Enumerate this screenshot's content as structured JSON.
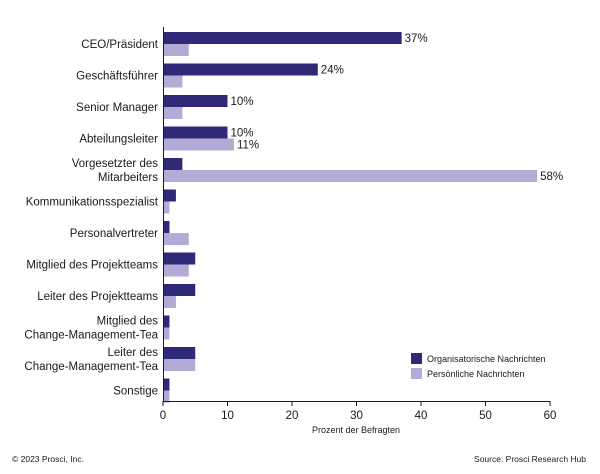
{
  "chart_data": {
    "type": "bar",
    "orientation": "horizontal",
    "categories": [
      [
        "CEO/Präsident"
      ],
      [
        "Geschäftsführer"
      ],
      [
        "Senior Manager"
      ],
      [
        "Abteilungsleiter"
      ],
      [
        "Vorgesetzter des",
        "Mitarbeiters"
      ],
      [
        "Kommunikationsspezialist"
      ],
      [
        "Personalvertreter"
      ],
      [
        "Mitglied des Projektteams"
      ],
      [
        "Leiter des Projektteams"
      ],
      [
        "Mitglied des",
        "Change-Management-Tea"
      ],
      [
        "Leiter des",
        "Change-Management-Tea"
      ],
      [
        "Sonstige"
      ]
    ],
    "series": [
      {
        "name": "Organisatorische Nachrichten",
        "color": "#2e2a78",
        "values": [
          37,
          24,
          10,
          10,
          3,
          2,
          1,
          5,
          5,
          1,
          5,
          1
        ],
        "labels": [
          "37%",
          "24%",
          "10%",
          "10%",
          "",
          "",
          "",
          "",
          "",
          "",
          "",
          ""
        ]
      },
      {
        "name": "Persönliche Nachrichten",
        "color": "#b1abd6",
        "values": [
          4,
          3,
          3,
          11,
          58,
          1,
          4,
          4,
          2,
          1,
          5,
          1
        ],
        "labels": [
          "",
          "",
          "",
          "11%",
          "58%",
          "",
          "",
          "",
          "",
          "",
          "",
          ""
        ]
      }
    ],
    "xlim": [
      0,
      60
    ],
    "xticks": [
      "0",
      "10",
      "20",
      "30",
      "40",
      "50",
      "60"
    ],
    "xlabel": "Prozent der Befragten",
    "legend_position": "bottom-right",
    "grid": false
  },
  "footer": {
    "copyright": "© 2023 Prosci, Inc.",
    "source": "Source: Prosci Research Hub"
  }
}
